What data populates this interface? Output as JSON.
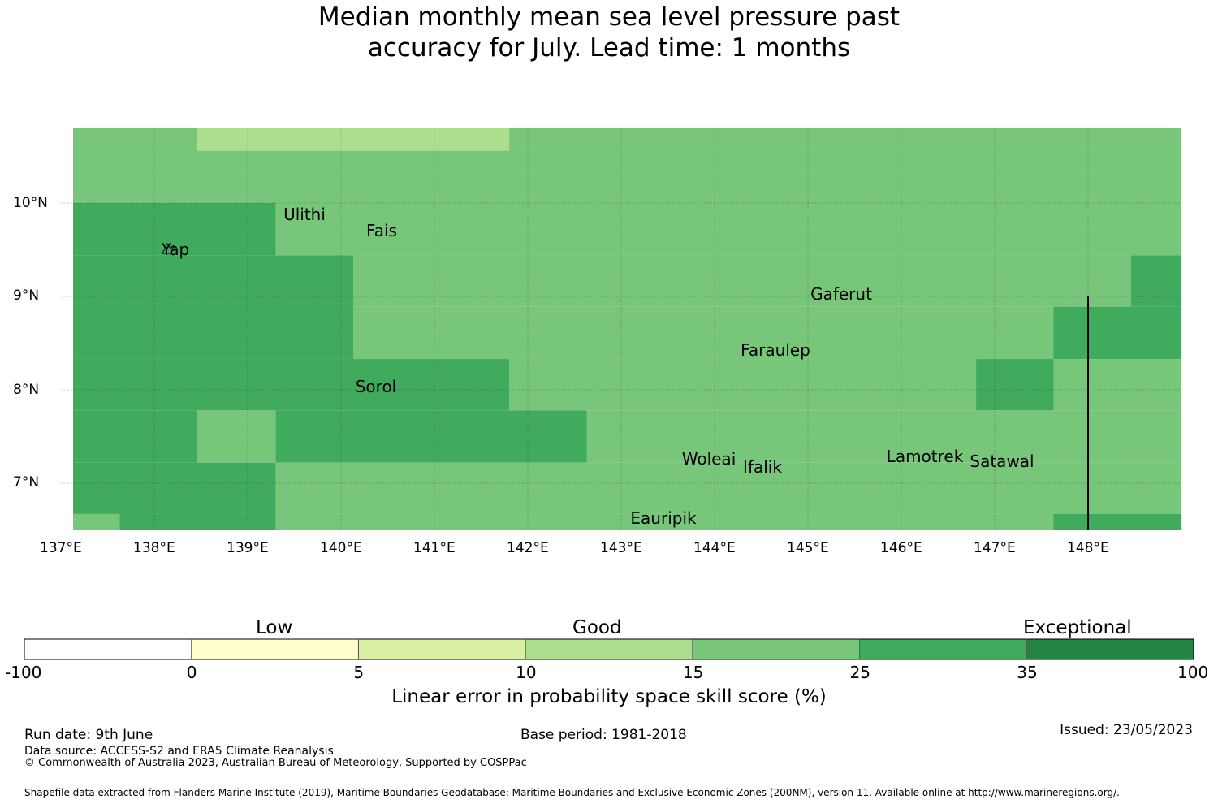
{
  "title": {
    "line1": "Median monthly mean sea level pressure past",
    "line2": "accuracy for July. Lead time: 1 months"
  },
  "map": {
    "lon_range": [
      137,
      149
    ],
    "lat_range": [
      6.5,
      10.8
    ],
    "x_ticks": [
      "137°E",
      "138°E",
      "139°E",
      "140°E",
      "141°E",
      "142°E",
      "143°E",
      "144°E",
      "145°E",
      "146°E",
      "147°E",
      "148°E"
    ],
    "y_ticks": [
      "10°N",
      "9°N",
      "8°N",
      "7°N"
    ],
    "grid_cell_deg": [
      0.833,
      0.56
    ],
    "colors": {
      "good_light": "#acde8d",
      "good": "#78c679",
      "very_good": "#41ab5d"
    },
    "cells": [
      {
        "lon0": 137.0,
        "lon1": 138.33,
        "lat0": 10.0,
        "lat1": 10.8,
        "class": "good"
      },
      {
        "lon0": 138.33,
        "lon1": 141.67,
        "lat0": 10.56,
        "lat1": 10.8,
        "class": "good_light"
      },
      {
        "lon0": 138.33,
        "lon1": 141.67,
        "lat0": 10.0,
        "lat1": 10.56,
        "class": "good"
      },
      {
        "lon0": 141.67,
        "lon1": 149.0,
        "lat0": 10.0,
        "lat1": 10.8,
        "class": "good"
      },
      {
        "lon0": 137.0,
        "lon1": 139.17,
        "lat0": 9.44,
        "lat1": 10.0,
        "class": "very_good"
      },
      {
        "lon0": 139.17,
        "lon1": 140.0,
        "lat0": 9.44,
        "lat1": 10.0,
        "class": "good"
      },
      {
        "lon0": 140.0,
        "lon1": 149.0,
        "lat0": 9.44,
        "lat1": 10.0,
        "class": "good"
      },
      {
        "lon0": 137.0,
        "lon1": 140.0,
        "lat0": 8.33,
        "lat1": 9.44,
        "class": "very_good"
      },
      {
        "lon0": 140.0,
        "lon1": 148.33,
        "lat0": 8.89,
        "lat1": 9.44,
        "class": "good"
      },
      {
        "lon0": 148.33,
        "lon1": 149.0,
        "lat0": 8.89,
        "lat1": 9.44,
        "class": "very_good"
      },
      {
        "lon0": 140.0,
        "lon1": 147.5,
        "lat0": 8.33,
        "lat1": 8.89,
        "class": "good"
      },
      {
        "lon0": 147.5,
        "lon1": 149.0,
        "lat0": 8.33,
        "lat1": 8.89,
        "class": "very_good"
      },
      {
        "lon0": 137.0,
        "lon1": 141.67,
        "lat0": 7.78,
        "lat1": 8.33,
        "class": "very_good"
      },
      {
        "lon0": 141.67,
        "lon1": 146.67,
        "lat0": 7.78,
        "lat1": 8.33,
        "class": "good"
      },
      {
        "lon0": 146.67,
        "lon1": 147.5,
        "lat0": 7.78,
        "lat1": 8.33,
        "class": "very_good"
      },
      {
        "lon0": 147.5,
        "lon1": 149.0,
        "lat0": 7.78,
        "lat1": 8.33,
        "class": "good"
      },
      {
        "lon0": 137.0,
        "lon1": 138.33,
        "lat0": 7.22,
        "lat1": 7.78,
        "class": "very_good"
      },
      {
        "lon0": 138.33,
        "lon1": 139.17,
        "lat0": 7.22,
        "lat1": 7.78,
        "class": "good"
      },
      {
        "lon0": 139.17,
        "lon1": 142.5,
        "lat0": 7.22,
        "lat1": 7.78,
        "class": "very_good"
      },
      {
        "lon0": 142.5,
        "lon1": 149.0,
        "lat0": 7.22,
        "lat1": 7.78,
        "class": "good"
      },
      {
        "lon0": 137.0,
        "lon1": 139.17,
        "lat0": 6.67,
        "lat1": 7.22,
        "class": "very_good"
      },
      {
        "lon0": 139.17,
        "lon1": 149.0,
        "lat0": 6.67,
        "lat1": 7.22,
        "class": "good"
      },
      {
        "lon0": 137.0,
        "lon1": 137.5,
        "lat0": 6.5,
        "lat1": 6.67,
        "class": "good"
      },
      {
        "lon0": 137.5,
        "lon1": 139.17,
        "lat0": 6.5,
        "lat1": 6.67,
        "class": "very_good"
      },
      {
        "lon0": 139.17,
        "lon1": 140.0,
        "lat0": 6.5,
        "lat1": 6.67,
        "class": "good"
      },
      {
        "lon0": 140.0,
        "lon1": 147.5,
        "lat0": 6.5,
        "lat1": 6.67,
        "class": "good"
      },
      {
        "lon0": 147.5,
        "lon1": 149.0,
        "lat0": 6.5,
        "lat1": 6.67,
        "class": "very_good"
      }
    ],
    "places": [
      {
        "name": "Yap",
        "lon": 138.1,
        "lat": 9.53
      },
      {
        "name": "Ulithi",
        "lon": 139.72,
        "lat": 9.85
      },
      {
        "name": "Fais",
        "lon": 140.52,
        "lat": 9.68
      },
      {
        "name": "Gaferut",
        "lon": 145.38,
        "lat": 9.0
      },
      {
        "name": "Faraulep",
        "lon": 144.52,
        "lat": 8.4
      },
      {
        "name": "Sorol",
        "lon": 140.38,
        "lat": 8.01
      },
      {
        "name": "Woleai",
        "lon": 143.9,
        "lat": 7.25
      },
      {
        "name": "Ifalik",
        "lon": 144.45,
        "lat": 7.15
      },
      {
        "name": "Lamotrek",
        "lon": 146.33,
        "lat": 7.27
      },
      {
        "name": "Satawal",
        "lon": 147.04,
        "lat": 7.22
      },
      {
        "name": "Eauripik",
        "lon": 143.04,
        "lat": 6.58
      }
    ],
    "boundary_line": {
      "lon": 148.0,
      "lat0": 6.5,
      "lat1": 9.0
    }
  },
  "colorbar": {
    "categories": [
      "Low",
      "Good",
      "Exceptional"
    ],
    "ticks": [
      "-100",
      "0",
      "5",
      "10",
      "15",
      "25",
      "35",
      "100"
    ],
    "colors": [
      "#ffffff",
      "#ffffcc",
      "#d9f0a3",
      "#addd8e",
      "#78c679",
      "#41ab5d",
      "#238443"
    ],
    "label": "Linear error in probability space skill score (%)"
  },
  "footer": {
    "run_date": "Run date: 9th June",
    "base_period": "Base period: 1981-2018",
    "issued": "Issued: 23/05/2023",
    "data_source": "Data source: ACCESS-S2 and ERA5 Climate Reanalysis",
    "copyright": "© Commonwealth of Australia 2023, Australian Bureau of Meteorology, Supported by COSPPac",
    "shapefile": "Shapefile data extracted from Flanders Marine Institute (2019), Maritime Boundaries Geodatabase: Maritime Boundaries and Exclusive Economic Zones (200NM), version 11. Available online at http://www.marineregions.org/."
  }
}
